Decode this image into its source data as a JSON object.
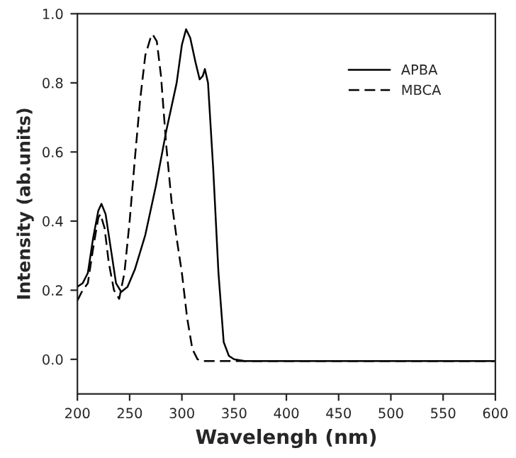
{
  "chart_data": {
    "type": "line",
    "xlabel": "Wavelengh (nm)",
    "ylabel": "Intensity (ab.units)",
    "xlim": [
      200,
      600
    ],
    "xticks": [
      200,
      250,
      300,
      350,
      400,
      450,
      500,
      550,
      600
    ],
    "ylim": [
      -0.1,
      1.0
    ],
    "yticks": [
      {
        "value": 0.0,
        "label": "0.0"
      },
      {
        "value": 0.2,
        "label": "0.2"
      },
      {
        "value": 0.4,
        "label": "0.4"
      },
      {
        "value": 0.6,
        "label": "0.6"
      },
      {
        "value": 0.8,
        "label": "0.8"
      },
      {
        "value": 1.0,
        "label": "1.0"
      }
    ],
    "grid": false,
    "legend": "top right",
    "marker": "none",
    "series": [
      {
        "name": "APBA",
        "color": "#000000",
        "line_style": "solid",
        "x": [
          200,
          205,
          210,
          215,
          220,
          223,
          227,
          232,
          237,
          242,
          248,
          255,
          265,
          275,
          285,
          295,
          300,
          304,
          308,
          313,
          317,
          320,
          322,
          325,
          330,
          335,
          340,
          345,
          350,
          360,
          400,
          600
        ],
        "values": [
          0.21,
          0.22,
          0.25,
          0.35,
          0.43,
          0.45,
          0.42,
          0.32,
          0.22,
          0.195,
          0.21,
          0.26,
          0.36,
          0.5,
          0.66,
          0.8,
          0.91,
          0.955,
          0.93,
          0.86,
          0.81,
          0.82,
          0.84,
          0.8,
          0.55,
          0.25,
          0.05,
          0.01,
          0.0,
          -0.005,
          -0.005,
          -0.005
        ]
      },
      {
        "name": "MBCA",
        "color": "#000000",
        "line_style": "dashed",
        "x": [
          200,
          205,
          210,
          215,
          220,
          222,
          226,
          230,
          235,
          240,
          245,
          250,
          255,
          260,
          265,
          270,
          272,
          276,
          280,
          285,
          290,
          295,
          300,
          305,
          310,
          315,
          320,
          360,
          600
        ],
        "values": [
          0.17,
          0.2,
          0.22,
          0.32,
          0.41,
          0.42,
          0.38,
          0.28,
          0.2,
          0.175,
          0.25,
          0.4,
          0.58,
          0.75,
          0.88,
          0.93,
          0.94,
          0.92,
          0.82,
          0.62,
          0.46,
          0.35,
          0.25,
          0.12,
          0.03,
          0.0,
          -0.005,
          -0.005,
          -0.005
        ]
      }
    ]
  }
}
